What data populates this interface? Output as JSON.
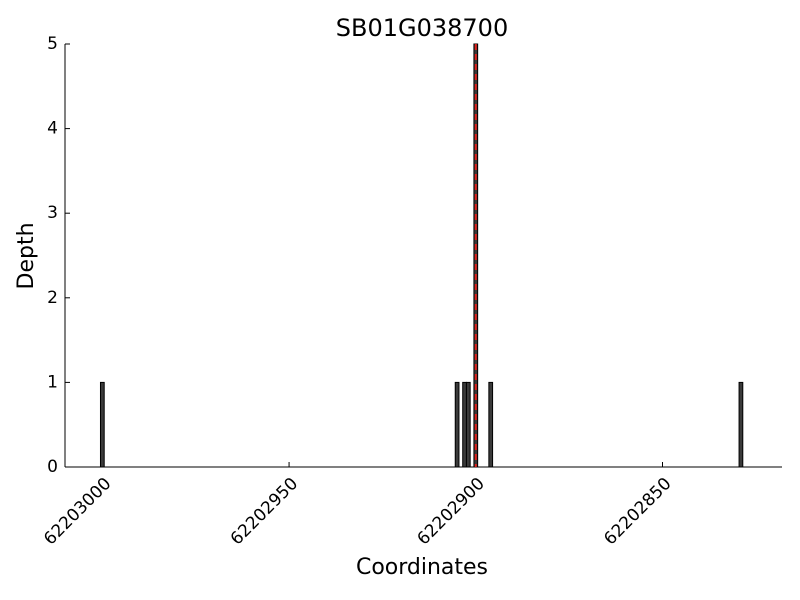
{
  "chart_data": {
    "type": "bar",
    "title": "SB01G038700",
    "x_label": "Coordinates",
    "y_label": "Depth",
    "x": [
      62203000,
      62202905,
      62202903,
      62202902,
      62202900,
      62202896,
      62202829
    ],
    "values": [
      1,
      1,
      1,
      1,
      5,
      1,
      1
    ],
    "color": "#3a3a3a",
    "xlim": [
      62203010,
      62202818
    ],
    "xticks": [
      62203000,
      62202950,
      62202900,
      62202850
    ],
    "ylim": [
      0,
      5
    ],
    "yticks": [
      0,
      1,
      2,
      3,
      4,
      5
    ],
    "vline": 62202900,
    "vline_color": "#e0201b",
    "grid": false
  }
}
